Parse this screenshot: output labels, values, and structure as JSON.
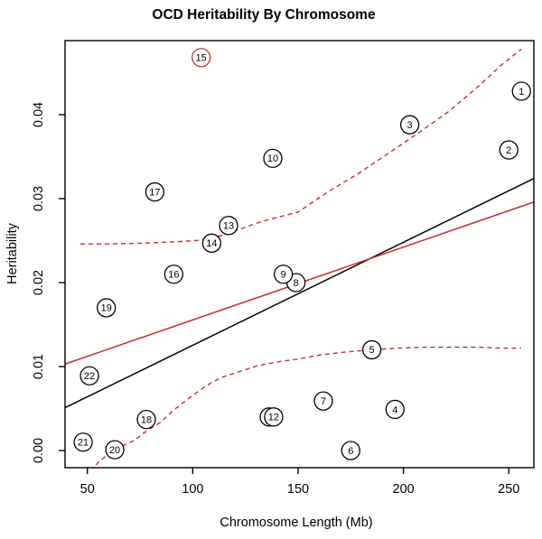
{
  "chart_data": {
    "type": "scatter",
    "title": "OCD Heritability By Chromosome",
    "xlabel": "Chromosome Length (Mb)",
    "ylabel": "Heritability",
    "x_ticks": [
      50,
      100,
      150,
      200,
      250
    ],
    "y_ticks": [
      0.0,
      0.01,
      0.02,
      0.03,
      0.04
    ],
    "y_tick_labels": [
      "0.00",
      "0.01",
      "0.02",
      "0.03",
      "0.04"
    ],
    "xlim": [
      39.4,
      261.9
    ],
    "ylim": [
      -0.00204,
      0.04882
    ],
    "grid": false,
    "legend": "none",
    "colors": {
      "red": "#cc2a2a",
      "red_circle": "#b83a3a",
      "black": "#000000"
    },
    "points": [
      {
        "chr": "1",
        "length_mb": 256,
        "heritability": 0.0428,
        "color": "black"
      },
      {
        "chr": "2",
        "length_mb": 250,
        "heritability": 0.0358,
        "color": "black"
      },
      {
        "chr": "3",
        "length_mb": 203,
        "heritability": 0.0388,
        "color": "black"
      },
      {
        "chr": "4",
        "length_mb": 196,
        "heritability": 0.0049,
        "color": "black"
      },
      {
        "chr": "5",
        "length_mb": 185,
        "heritability": 0.012,
        "color": "black"
      },
      {
        "chr": "6",
        "length_mb": 175,
        "heritability": 0.0,
        "color": "black"
      },
      {
        "chr": "7",
        "length_mb": 162,
        "heritability": 0.0059,
        "color": "black"
      },
      {
        "chr": "8",
        "length_mb": 149,
        "heritability": 0.02,
        "color": "black"
      },
      {
        "chr": "9",
        "length_mb": 143,
        "heritability": 0.021,
        "color": "black"
      },
      {
        "chr": "10",
        "length_mb": 138,
        "heritability": 0.0348,
        "color": "black"
      },
      {
        "chr": "11",
        "length_mb": 136.3,
        "heritability": 0.004,
        "color": "black"
      },
      {
        "chr": "12",
        "length_mb": 138.4,
        "heritability": 0.004,
        "color": "black"
      },
      {
        "chr": "13",
        "length_mb": 117,
        "heritability": 0.0268,
        "color": "black"
      },
      {
        "chr": "14",
        "length_mb": 109,
        "heritability": 0.0247,
        "color": "black"
      },
      {
        "chr": "15",
        "length_mb": 104,
        "heritability": 0.0468,
        "color": "red"
      },
      {
        "chr": "16",
        "length_mb": 91,
        "heritability": 0.021,
        "color": "black"
      },
      {
        "chr": "17",
        "length_mb": 82,
        "heritability": 0.0308,
        "color": "black"
      },
      {
        "chr": "18",
        "length_mb": 78,
        "heritability": 0.0037,
        "color": "black"
      },
      {
        "chr": "19",
        "length_mb": 59,
        "heritability": 0.017,
        "color": "black"
      },
      {
        "chr": "20",
        "length_mb": 63,
        "heritability": 0.0001,
        "color": "black"
      },
      {
        "chr": "21",
        "length_mb": 48,
        "heritability": 0.001,
        "color": "black"
      },
      {
        "chr": "22",
        "length_mb": 51,
        "heritability": 0.0089,
        "color": "black"
      }
    ],
    "lines": [
      {
        "name": "linear-fit-black",
        "color": "black",
        "style": "solid",
        "x": [
          39.4,
          261.9
        ],
        "y": [
          0.0051,
          0.0324
        ]
      },
      {
        "name": "fit-line-red",
        "color": "red",
        "style": "solid",
        "x": [
          39.4,
          261.9
        ],
        "y": [
          0.0103,
          0.0296
        ]
      }
    ],
    "bands": {
      "upper": [
        [
          46.7,
          0.0246
        ],
        [
          60.0,
          0.0246
        ],
        [
          77.1,
          0.0247
        ],
        [
          94.3,
          0.0249
        ],
        [
          107.1,
          0.0251
        ],
        [
          117.0,
          0.0259
        ],
        [
          132.9,
          0.0273
        ],
        [
          150.0,
          0.0284
        ],
        [
          164.1,
          0.0308
        ],
        [
          178.7,
          0.033
        ],
        [
          192.9,
          0.0354
        ],
        [
          207.0,
          0.0378
        ],
        [
          221.6,
          0.0404
        ],
        [
          235.7,
          0.0434
        ],
        [
          246.4,
          0.0459
        ],
        [
          255.9,
          0.0478
        ]
      ],
      "lower": [
        [
          51.8,
          -0.0025
        ],
        [
          54.8,
          -0.0015
        ],
        [
          60.0,
          -0.0004
        ],
        [
          66.4,
          0.0005
        ],
        [
          72.8,
          0.0013
        ],
        [
          78.4,
          0.0024
        ],
        [
          84.4,
          0.0033
        ],
        [
          91.3,
          0.0049
        ],
        [
          98.6,
          0.0063
        ],
        [
          106.3,
          0.0077
        ],
        [
          113.6,
          0.0087
        ],
        [
          122.1,
          0.0094
        ],
        [
          130.7,
          0.0101
        ],
        [
          141.4,
          0.0106
        ],
        [
          150.0,
          0.0109
        ],
        [
          160.7,
          0.0114
        ],
        [
          171.4,
          0.0117
        ],
        [
          180.0,
          0.0119
        ],
        [
          185.1,
          0.012
        ],
        [
          197.1,
          0.0122
        ],
        [
          210.0,
          0.0123
        ],
        [
          222.9,
          0.0123
        ],
        [
          235.7,
          0.0123
        ],
        [
          246.4,
          0.0122
        ],
        [
          255.9,
          0.0122
        ]
      ]
    }
  }
}
